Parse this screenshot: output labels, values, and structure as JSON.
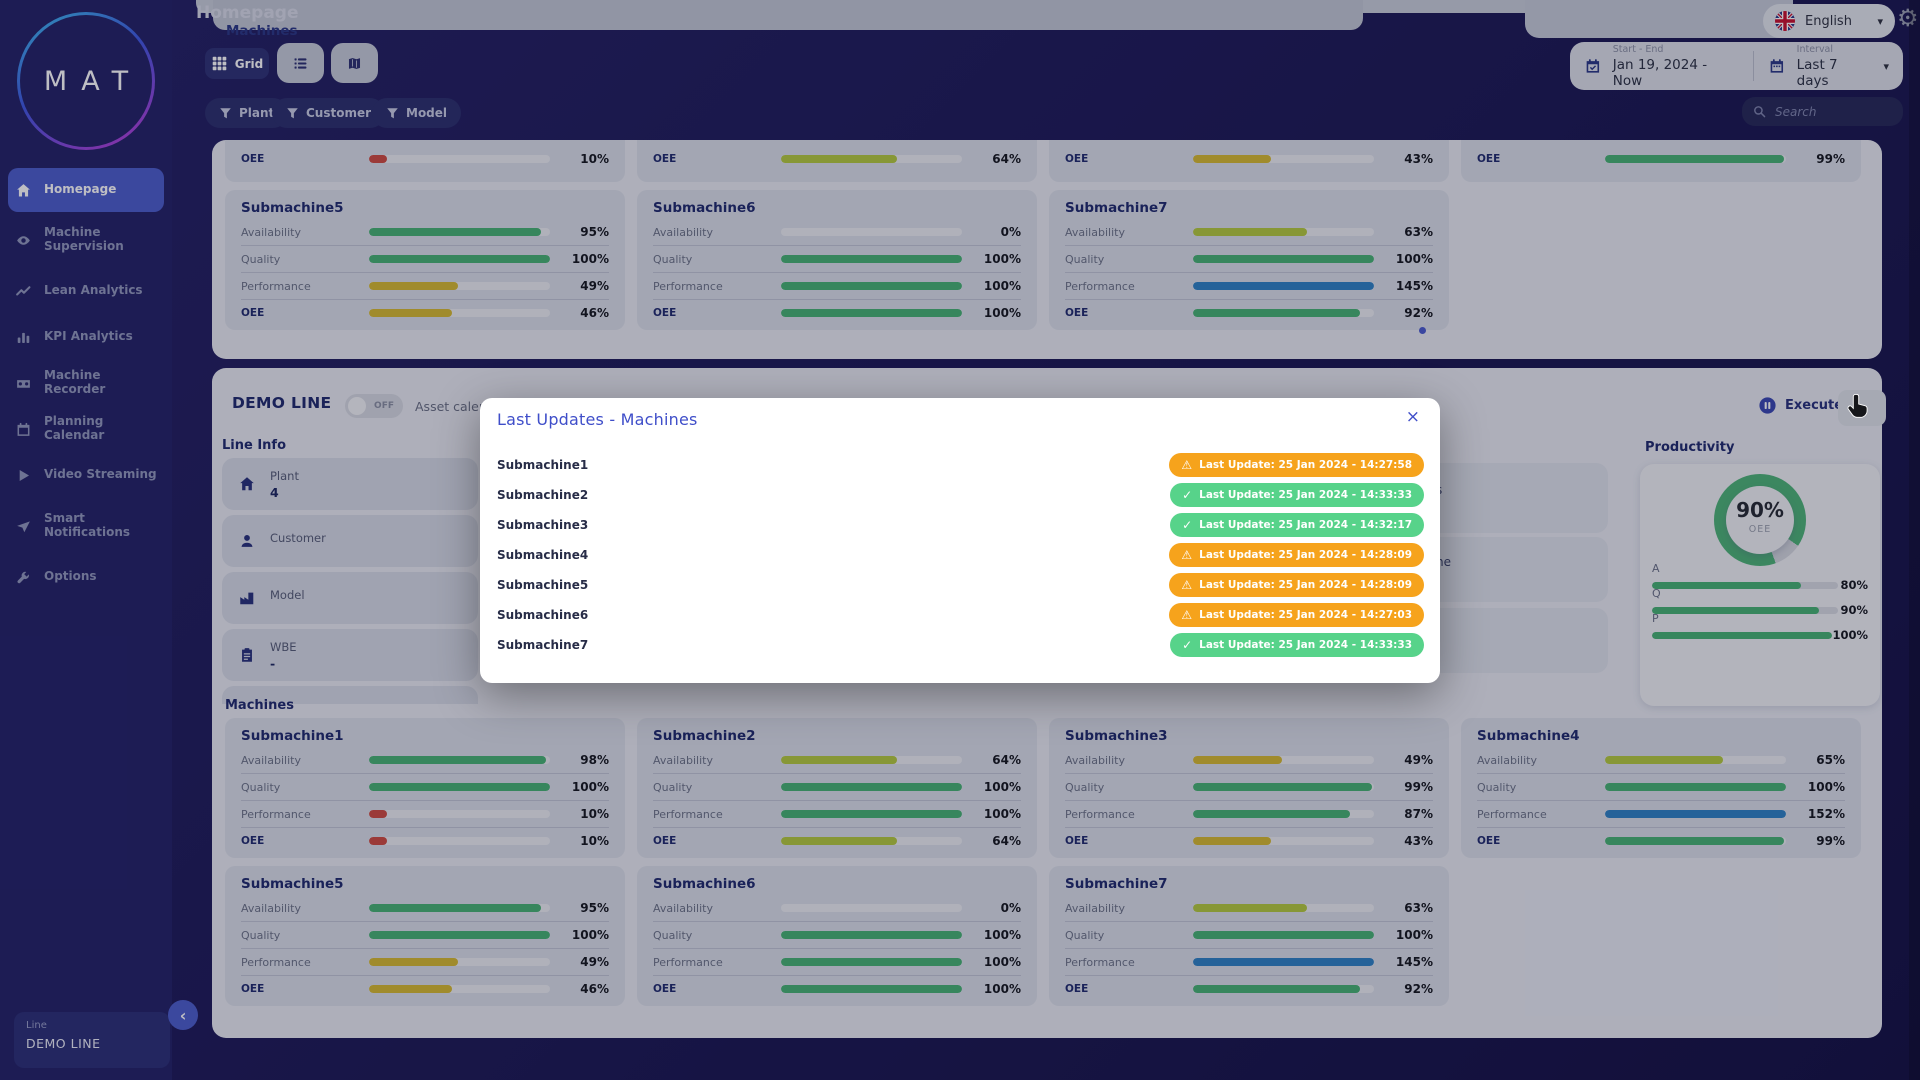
{
  "app": {
    "logo_text": "MAT",
    "title": "Homepage",
    "subtitle": "Machines",
    "language": "English"
  },
  "sidebar": {
    "items": [
      {
        "label": "Homepage",
        "active": true
      },
      {
        "label": "Machine Supervision"
      },
      {
        "label": "Lean Analytics"
      },
      {
        "label": "KPI Analytics"
      },
      {
        "label": "Machine Recorder"
      },
      {
        "label": "Planning Calendar"
      },
      {
        "label": "Video Streaming"
      },
      {
        "label": "Smart Notifications"
      },
      {
        "label": "Options"
      }
    ],
    "line_box": {
      "label": "Line",
      "value": "DEMO LINE"
    }
  },
  "toolbar": {
    "view_buttons": {
      "grid": "Grid"
    },
    "filters": [
      "Plant",
      "Customer",
      "Model"
    ],
    "search_placeholder": "Search",
    "date_range": {
      "label": "Start - End",
      "value": "Jan 19, 2024 - Now"
    },
    "interval": {
      "label": "Interval",
      "value": "Last 7 days"
    }
  },
  "colors": {
    "green": "#47b273",
    "yellowgreen": "#b4ca3e",
    "yellow": "#d6ba31",
    "red": "#cf4b41",
    "blue": "#2e81c6",
    "none": "transparent",
    "badge_warning": "#F6A31C",
    "badge_success": "#57D38A",
    "accent_blue": "#4a5bd0"
  },
  "machine_row_labels": [
    "Availability",
    "Quality",
    "Performance",
    "OEE"
  ],
  "machines": [
    {
      "name": "Submachine1",
      "bars": [
        {
          "pct": 98,
          "display": "98%",
          "color": "green"
        },
        {
          "pct": 100,
          "display": "100%",
          "color": "green"
        },
        {
          "pct": 10,
          "display": "10%",
          "color": "red"
        },
        {
          "pct": 10,
          "display": "10%",
          "color": "red"
        }
      ]
    },
    {
      "name": "Submachine2",
      "bars": [
        {
          "pct": 64,
          "display": "64%",
          "color": "yellowgreen"
        },
        {
          "pct": 100,
          "display": "100%",
          "color": "green"
        },
        {
          "pct": 100,
          "display": "100%",
          "color": "green"
        },
        {
          "pct": 64,
          "display": "64%",
          "color": "yellowgreen"
        }
      ]
    },
    {
      "name": "Submachine3",
      "bars": [
        {
          "pct": 49,
          "display": "49%",
          "color": "yellow"
        },
        {
          "pct": 99,
          "display": "99%",
          "color": "green"
        },
        {
          "pct": 87,
          "display": "87%",
          "color": "green"
        },
        {
          "pct": 43,
          "display": "43%",
          "color": "yellow"
        }
      ]
    },
    {
      "name": "Submachine4",
      "bars": [
        {
          "pct": 65,
          "display": "65%",
          "color": "yellowgreen"
        },
        {
          "pct": 100,
          "display": "100%",
          "color": "green"
        },
        {
          "pct": 152,
          "display": "152%",
          "color": "blue"
        },
        {
          "pct": 99,
          "display": "99%",
          "color": "green"
        }
      ]
    },
    {
      "name": "Submachine5",
      "bars": [
        {
          "pct": 95,
          "display": "95%",
          "color": "green"
        },
        {
          "pct": 100,
          "display": "100%",
          "color": "green"
        },
        {
          "pct": 49,
          "display": "49%",
          "color": "yellow"
        },
        {
          "pct": 46,
          "display": "46%",
          "color": "yellow"
        }
      ]
    },
    {
      "name": "Submachine6",
      "bars": [
        {
          "pct": 0,
          "display": "0%",
          "color": "none"
        },
        {
          "pct": 100,
          "display": "100%",
          "color": "green"
        },
        {
          "pct": 100,
          "display": "100%",
          "color": "green"
        },
        {
          "pct": 100,
          "display": "100%",
          "color": "green"
        }
      ]
    },
    {
      "name": "Submachine7",
      "bars": [
        {
          "pct": 63,
          "display": "63%",
          "color": "yellowgreen"
        },
        {
          "pct": 100,
          "display": "100%",
          "color": "green"
        },
        {
          "pct": 145,
          "display": "145%",
          "color": "blue"
        },
        {
          "pct": 92,
          "display": "92%",
          "color": "green"
        }
      ]
    }
  ],
  "top_section": {
    "partial_row": [
      {
        "label": "OEE",
        "pct": 10,
        "display": "10%",
        "color": "red"
      },
      {
        "label": "OEE",
        "pct": 64,
        "display": "64%",
        "color": "yellowgreen"
      },
      {
        "label": "OEE",
        "pct": 43,
        "display": "43%",
        "color": "yellow"
      },
      {
        "label": "OEE",
        "pct": 99,
        "display": "99%",
        "color": "green"
      }
    ],
    "visible_machines": [
      "Submachine5",
      "Submachine6",
      "Submachine7"
    ]
  },
  "demo_line": {
    "title": "DEMO LINE",
    "toggle_label": "OFF",
    "asset_calendar_label": "Asset calendar",
    "execute_label": "Execute",
    "line_info": {
      "title": "Line Info",
      "cards": [
        {
          "label": "Plant",
          "value": "4"
        },
        {
          "label": "Customer",
          "value": ""
        },
        {
          "label": "Model",
          "value": ""
        },
        {
          "label": "WBE",
          "value": "-"
        }
      ]
    },
    "hidden_card_fragments": [
      "s",
      "ne"
    ],
    "productivity": {
      "title": "Productivity",
      "gauge": {
        "value": "90%",
        "label": "OEE",
        "pct": 90
      },
      "bars": [
        {
          "label": "A",
          "pct": 80,
          "display": "80%"
        },
        {
          "label": "Q",
          "pct": 90,
          "display": "90%"
        },
        {
          "label": "P",
          "pct": 100,
          "display": "100%"
        }
      ]
    },
    "machines_title": "Machines"
  },
  "modal": {
    "title": "Last Updates - Machines",
    "close": "×",
    "rows": [
      {
        "name": "Submachine1",
        "status": "warning",
        "badge": "Last Update: 25 Jan 2024 - 14:27:58"
      },
      {
        "name": "Submachine2",
        "status": "success",
        "badge": "Last Update: 25 Jan 2024 - 14:33:33"
      },
      {
        "name": "Submachine3",
        "status": "success",
        "badge": "Last Update: 25 Jan 2024 - 14:32:17"
      },
      {
        "name": "Submachine4",
        "status": "warning",
        "badge": "Last Update: 25 Jan 2024 - 14:28:09"
      },
      {
        "name": "Submachine5",
        "status": "warning",
        "badge": "Last Update: 25 Jan 2024 - 14:28:09"
      },
      {
        "name": "Submachine6",
        "status": "warning",
        "badge": "Last Update: 25 Jan 2024 - 14:27:03"
      },
      {
        "name": "Submachine7",
        "status": "success",
        "badge": "Last Update: 25 Jan 2024 - 14:33:33"
      }
    ]
  }
}
